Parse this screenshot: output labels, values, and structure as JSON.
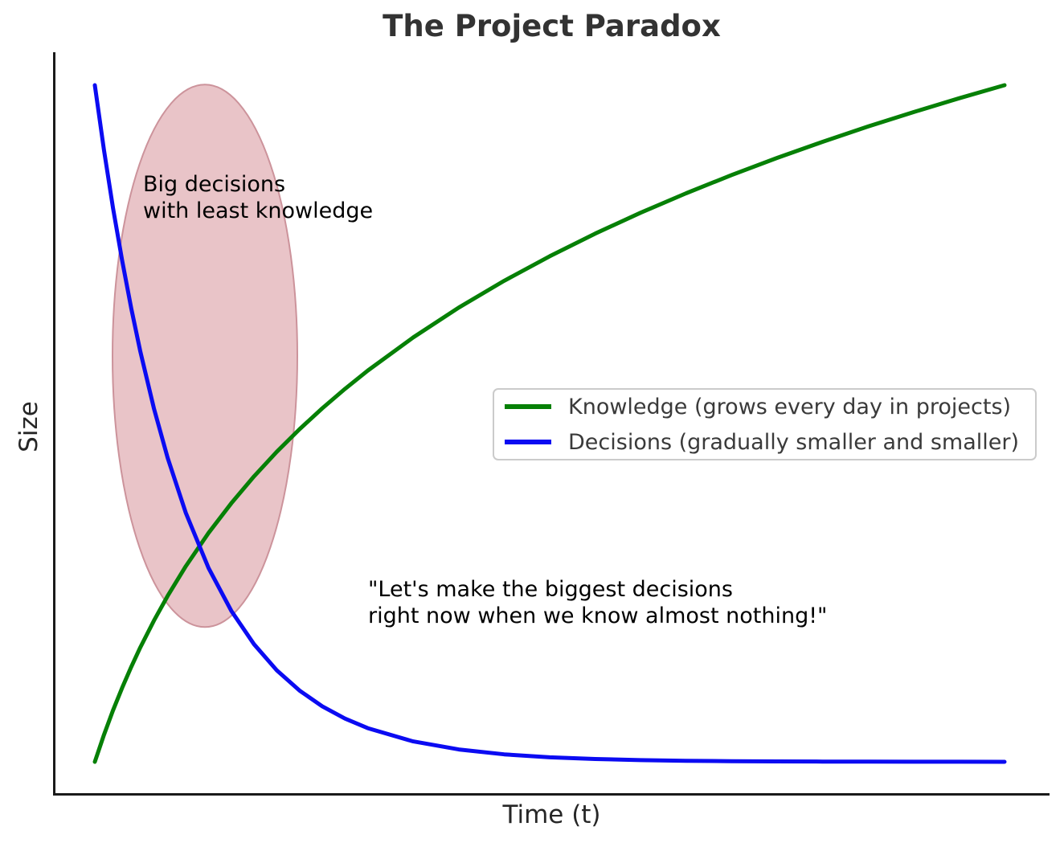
{
  "figure": {
    "background": "#ffffff",
    "axis_color": "#1a1a1a",
    "title_color": "#333333"
  },
  "chart_data": {
    "type": "line",
    "title": "The Project Paradox",
    "xlabel": "Time (t)",
    "ylabel": "Size",
    "grid": false,
    "xlim": [
      -0.45,
      10.49
    ],
    "ylim": [
      -0.05,
      1.05
    ],
    "x": [
      0,
      0.1,
      0.2,
      0.3,
      0.4,
      0.5,
      0.65,
      0.8,
      1,
      1.25,
      1.5,
      1.75,
      2,
      2.25,
      2.5,
      2.75,
      3,
      3.5,
      4,
      4.5,
      5,
      5.5,
      6,
      6.5,
      7,
      7.5,
      8,
      8.5,
      9,
      9.5,
      10
    ],
    "series": [
      {
        "name": "Knowledge (grows every day in projects)",
        "color": "#068006",
        "values": [
          0,
          0.0397,
          0.076,
          0.1094,
          0.1403,
          0.1691,
          0.2088,
          0.2451,
          0.2891,
          0.3382,
          0.3821,
          0.4219,
          0.4582,
          0.4916,
          0.5224,
          0.5512,
          0.5781,
          0.6272,
          0.6712,
          0.7109,
          0.7472,
          0.7806,
          0.8115,
          0.8403,
          0.8672,
          0.8925,
          0.9163,
          0.9389,
          0.9602,
          0.9806,
          1.0
        ]
      },
      {
        "name": "Decisions (gradually smaller and smaller)",
        "color": "#0b0bf2",
        "values": [
          1.0,
          0.9048,
          0.8187,
          0.7408,
          0.6703,
          0.6065,
          0.522,
          0.4493,
          0.3679,
          0.2865,
          0.2231,
          0.1738,
          0.1353,
          0.1054,
          0.0821,
          0.0639,
          0.0498,
          0.0302,
          0.0183,
          0.0111,
          0.0067,
          0.0041,
          0.0025,
          0.0015,
          0.0009,
          0.0006,
          0.0003,
          0.0002,
          0.0001,
          0.0001,
          0.0
        ]
      }
    ],
    "legend": {
      "position": "center right",
      "border_color": "#cbcbcb",
      "background": "#ffffff"
    },
    "annotations": [
      {
        "name": "big-decisions-label",
        "lines": [
          "Big decisions",
          "with least knowledge"
        ],
        "x": 0.53,
        "y": 0.873
      },
      {
        "name": "quote-label",
        "lines": [
          "\"Let's make the biggest decisions",
          "right now when we know almost nothing!\""
        ],
        "x": 3.0,
        "y": 0.2743
      }
    ],
    "highlight_ellipse": {
      "cx": 1.21,
      "cy": 0.6,
      "rx": 1.016,
      "ry": 0.4008,
      "fill": "#e9c4c8",
      "stroke": "#cc939b"
    }
  }
}
